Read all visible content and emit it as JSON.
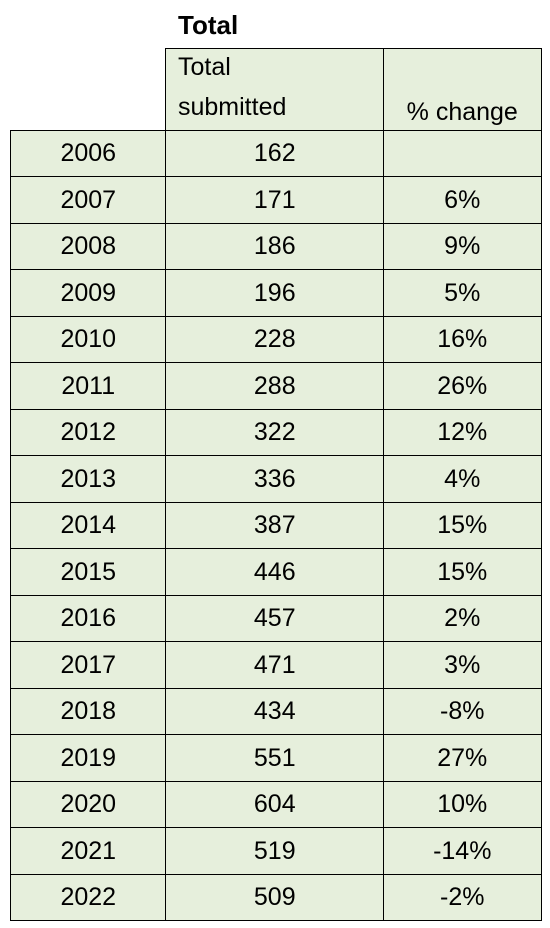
{
  "title": "Total",
  "table": {
    "header": [
      "Total submitted",
      "% change"
    ],
    "rows": [
      [
        "2006",
        "162"
      ],
      [
        "2007",
        "171",
        "6%"
      ],
      [
        "2008",
        "186",
        "9%"
      ],
      [
        "2009",
        "196",
        "5%"
      ],
      [
        "2010",
        "228",
        "16%"
      ],
      [
        "2011",
        "288",
        "26%"
      ],
      [
        "2012",
        "322",
        "12%"
      ],
      [
        "2013",
        "336",
        "4%"
      ],
      [
        "2014",
        "387",
        "15%"
      ],
      [
        "2015",
        "446",
        "15%"
      ],
      [
        "2016",
        "457",
        "2%"
      ],
      [
        "2017",
        "471",
        "3%"
      ],
      [
        "2018",
        "434",
        "-8%"
      ],
      [
        "2019",
        "551",
        "27%"
      ],
      [
        "2020",
        "604",
        "10%"
      ],
      [
        "2021",
        "519",
        "-14%"
      ],
      [
        "2022",
        "509",
        "-2%"
      ]
    ]
  }
}
